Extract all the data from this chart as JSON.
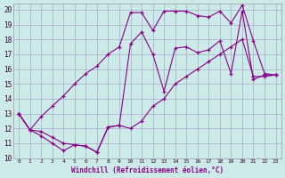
{
  "background_color": "#cceae8",
  "grid_color": "#aaaacc",
  "line_color": "#880088",
  "xlabel": "Windchill (Refroidissement éolien,°C)",
  "xlim": [
    -0.5,
    23.5
  ],
  "ylim": [
    10,
    20.4
  ],
  "yticks": [
    10,
    11,
    12,
    13,
    14,
    15,
    16,
    17,
    18,
    19,
    20
  ],
  "xticks": [
    0,
    1,
    2,
    3,
    4,
    5,
    6,
    7,
    8,
    9,
    10,
    11,
    12,
    13,
    14,
    15,
    16,
    17,
    18,
    19,
    20,
    21,
    22,
    23
  ],
  "line_top_x": [
    0,
    1,
    2,
    3,
    4,
    5,
    6,
    7,
    8,
    9,
    10,
    11,
    12,
    13,
    14,
    15,
    16,
    17,
    18,
    19,
    20,
    21,
    22,
    23
  ],
  "line_top_y": [
    13.0,
    11.9,
    12.8,
    13.5,
    14.2,
    15.0,
    15.7,
    16.2,
    17.0,
    17.5,
    19.8,
    19.8,
    18.6,
    19.9,
    19.9,
    19.9,
    19.6,
    19.5,
    19.9,
    19.1,
    20.3,
    17.9,
    15.7,
    15.6
  ],
  "line_mid_x": [
    0,
    1,
    2,
    3,
    4,
    5,
    6,
    7,
    8,
    9,
    10,
    11,
    12,
    13,
    14,
    15,
    16,
    17,
    18,
    19,
    20,
    21,
    22,
    23
  ],
  "line_mid_y": [
    13.0,
    11.9,
    11.8,
    11.4,
    11.0,
    10.9,
    10.8,
    10.4,
    12.1,
    12.2,
    17.7,
    18.5,
    17.0,
    14.5,
    17.4,
    17.5,
    17.1,
    17.3,
    17.9,
    15.7,
    19.9,
    15.3,
    15.6,
    15.6
  ],
  "line_bot_x": [
    0,
    1,
    2,
    3,
    4,
    5,
    6,
    7,
    8,
    9,
    10,
    11,
    12,
    13,
    14,
    15,
    16,
    17,
    18,
    19,
    20,
    21,
    22,
    23
  ],
  "line_bot_y": [
    13.0,
    11.9,
    11.5,
    11.0,
    10.5,
    10.9,
    10.8,
    10.4,
    12.1,
    12.2,
    12.0,
    12.5,
    13.5,
    14.0,
    15.0,
    15.5,
    16.0,
    16.5,
    17.0,
    17.5,
    18.0,
    15.5,
    15.5,
    15.6
  ]
}
